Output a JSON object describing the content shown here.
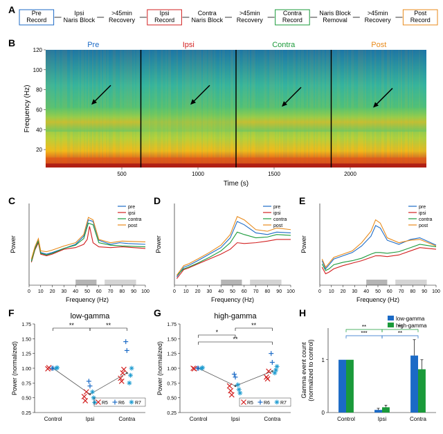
{
  "panelA": {
    "label": "A",
    "boxes": [
      {
        "text": "Pre\nRecord",
        "border": "#1b6ac6"
      },
      {
        "text": "Ipsi\nNaris Block"
      },
      {
        "text": ">45min\nRecovery"
      },
      {
        "text": "Ipsi\nRecord",
        "border": "#d21f1f"
      },
      {
        "text": "Contra\nNaris Block"
      },
      {
        "text": ">45min\nRecovery"
      },
      {
        "text": "Contra\nRecord",
        "border": "#1a9a3a"
      },
      {
        "text": "Naris Block\nRemoval"
      },
      {
        "text": ">45min\nRecovery"
      },
      {
        "text": "Post\nRecord",
        "border": "#e88a1a"
      }
    ],
    "font_size": 9
  },
  "panelB": {
    "label": "B",
    "title_labels": [
      {
        "text": "Pre",
        "color": "#1b6ac6"
      },
      {
        "text": "Ipsi",
        "color": "#d21f1f"
      },
      {
        "text": "Contra",
        "color": "#1a9a3a"
      },
      {
        "text": "Post",
        "color": "#e88a1a"
      }
    ],
    "ylabel": "Frequency (Hz)",
    "ylabel_fontsize": 10,
    "xlabel": "Time (s)",
    "xlabel_fontsize": 10,
    "ylim": [
      2,
      120
    ],
    "yticks": [
      20,
      40,
      60,
      80,
      100,
      120
    ],
    "xlim": [
      0,
      2500
    ],
    "xticks": [
      500,
      1000,
      1500,
      2000
    ],
    "segment_boundaries": [
      625,
      1250,
      1875
    ],
    "arrow_positions_x": [
      300,
      950,
      1550,
      2150
    ],
    "arrow_positions_y": [
      65,
      65,
      63,
      62
    ],
    "colormap": {
      "low": "#1a6fa8",
      "mid_low": "#34b3a0",
      "mid": "#5bc46b",
      "mid_high": "#b8d13a",
      "high": "#f3b81a",
      "peak": "#e05a1a",
      "max": "#a81414"
    },
    "band_y": 50
  },
  "panelC": {
    "label": "C"
  },
  "panelD": {
    "label": "D"
  },
  "panelE": {
    "label": "E"
  },
  "psd_common": {
    "xlabel": "Frequency (Hz)",
    "ylabel": "Power",
    "xlim": [
      0,
      100
    ],
    "xticks": [
      0,
      10,
      20,
      30,
      40,
      50,
      60,
      70,
      80,
      90,
      100
    ],
    "label_fontsize": 9,
    "tick_fontsize": 7,
    "legend": [
      {
        "label": "pre",
        "color": "#1b6ac6"
      },
      {
        "label": "ipsi",
        "color": "#d21f1f"
      },
      {
        "label": "contra",
        "color": "#1a9a3a"
      },
      {
        "label": "post",
        "color": "#e88a1a"
      }
    ],
    "grayband1": [
      40,
      58
    ],
    "grayband2": [
      65,
      92
    ],
    "line_width": 1.1
  },
  "psdC_data": {
    "ylim": [
      0,
      1
    ],
    "pre": [
      [
        2,
        0.3
      ],
      [
        5,
        0.45
      ],
      [
        8,
        0.55
      ],
      [
        10,
        0.4
      ],
      [
        15,
        0.38
      ],
      [
        20,
        0.4
      ],
      [
        30,
        0.45
      ],
      [
        40,
        0.5
      ],
      [
        47,
        0.6
      ],
      [
        51,
        0.8
      ],
      [
        55,
        0.78
      ],
      [
        60,
        0.55
      ],
      [
        70,
        0.5
      ],
      [
        78,
        0.52
      ],
      [
        85,
        0.51
      ],
      [
        100,
        0.5
      ]
    ],
    "ipsi": [
      [
        2,
        0.28
      ],
      [
        5,
        0.43
      ],
      [
        8,
        0.52
      ],
      [
        10,
        0.38
      ],
      [
        15,
        0.36
      ],
      [
        20,
        0.38
      ],
      [
        30,
        0.44
      ],
      [
        40,
        0.46
      ],
      [
        47,
        0.5
      ],
      [
        50,
        0.56
      ],
      [
        52,
        0.72
      ],
      [
        55,
        0.52
      ],
      [
        60,
        0.47
      ],
      [
        70,
        0.46
      ],
      [
        80,
        0.47
      ],
      [
        100,
        0.45
      ]
    ],
    "contra": [
      [
        2,
        0.29
      ],
      [
        5,
        0.44
      ],
      [
        8,
        0.54
      ],
      [
        10,
        0.39
      ],
      [
        15,
        0.37
      ],
      [
        20,
        0.39
      ],
      [
        30,
        0.45
      ],
      [
        40,
        0.49
      ],
      [
        47,
        0.57
      ],
      [
        51,
        0.76
      ],
      [
        55,
        0.74
      ],
      [
        60,
        0.52
      ],
      [
        70,
        0.49
      ],
      [
        80,
        0.48
      ],
      [
        100,
        0.47
      ]
    ],
    "post": [
      [
        2,
        0.32
      ],
      [
        5,
        0.47
      ],
      [
        8,
        0.57
      ],
      [
        10,
        0.42
      ],
      [
        15,
        0.41
      ],
      [
        20,
        0.43
      ],
      [
        30,
        0.48
      ],
      [
        40,
        0.52
      ],
      [
        47,
        0.62
      ],
      [
        51,
        0.83
      ],
      [
        55,
        0.8
      ],
      [
        60,
        0.56
      ],
      [
        70,
        0.52
      ],
      [
        80,
        0.54
      ],
      [
        100,
        0.53
      ]
    ]
  },
  "psdD_data": {
    "ylim": [
      0,
      1
    ],
    "pre": [
      [
        2,
        0.1
      ],
      [
        8,
        0.22
      ],
      [
        12,
        0.24
      ],
      [
        20,
        0.3
      ],
      [
        30,
        0.38
      ],
      [
        40,
        0.46
      ],
      [
        48,
        0.58
      ],
      [
        54,
        0.78
      ],
      [
        60,
        0.74
      ],
      [
        70,
        0.64
      ],
      [
        80,
        0.62
      ],
      [
        88,
        0.65
      ],
      [
        100,
        0.64
      ]
    ],
    "ipsi": [
      [
        2,
        0.08
      ],
      [
        8,
        0.19
      ],
      [
        12,
        0.21
      ],
      [
        20,
        0.26
      ],
      [
        30,
        0.32
      ],
      [
        40,
        0.38
      ],
      [
        48,
        0.44
      ],
      [
        54,
        0.52
      ],
      [
        60,
        0.51
      ],
      [
        70,
        0.52
      ],
      [
        80,
        0.54
      ],
      [
        88,
        0.56
      ],
      [
        100,
        0.56
      ]
    ],
    "contra": [
      [
        2,
        0.12
      ],
      [
        8,
        0.2
      ],
      [
        12,
        0.22
      ],
      [
        20,
        0.27
      ],
      [
        30,
        0.34
      ],
      [
        40,
        0.42
      ],
      [
        48,
        0.52
      ],
      [
        54,
        0.65
      ],
      [
        60,
        0.62
      ],
      [
        70,
        0.58
      ],
      [
        80,
        0.59
      ],
      [
        88,
        0.62
      ],
      [
        100,
        0.61
      ]
    ],
    "post": [
      [
        2,
        0.12
      ],
      [
        8,
        0.24
      ],
      [
        12,
        0.26
      ],
      [
        20,
        0.32
      ],
      [
        30,
        0.4
      ],
      [
        40,
        0.49
      ],
      [
        48,
        0.62
      ],
      [
        54,
        0.84
      ],
      [
        60,
        0.8
      ],
      [
        70,
        0.68
      ],
      [
        80,
        0.66
      ],
      [
        88,
        0.7
      ],
      [
        100,
        0.68
      ]
    ]
  },
  "psdE_data": {
    "ylim": [
      0,
      1
    ],
    "pre": [
      [
        2,
        0.3
      ],
      [
        5,
        0.2
      ],
      [
        8,
        0.25
      ],
      [
        12,
        0.32
      ],
      [
        20,
        0.36
      ],
      [
        28,
        0.4
      ],
      [
        36,
        0.48
      ],
      [
        44,
        0.6
      ],
      [
        48,
        0.73
      ],
      [
        52,
        0.7
      ],
      [
        58,
        0.55
      ],
      [
        68,
        0.5
      ],
      [
        78,
        0.56
      ],
      [
        86,
        0.58
      ],
      [
        100,
        0.49
      ]
    ],
    "ipsi": [
      [
        2,
        0.22
      ],
      [
        5,
        0.14
      ],
      [
        8,
        0.16
      ],
      [
        12,
        0.2
      ],
      [
        20,
        0.24
      ],
      [
        28,
        0.27
      ],
      [
        36,
        0.3
      ],
      [
        44,
        0.34
      ],
      [
        48,
        0.36
      ],
      [
        52,
        0.36
      ],
      [
        58,
        0.35
      ],
      [
        68,
        0.37
      ],
      [
        78,
        0.42
      ],
      [
        86,
        0.46
      ],
      [
        100,
        0.44
      ]
    ],
    "contra": [
      [
        2,
        0.26
      ],
      [
        5,
        0.18
      ],
      [
        8,
        0.2
      ],
      [
        12,
        0.25
      ],
      [
        20,
        0.28
      ],
      [
        28,
        0.3
      ],
      [
        36,
        0.33
      ],
      [
        44,
        0.38
      ],
      [
        48,
        0.4
      ],
      [
        52,
        0.4
      ],
      [
        58,
        0.39
      ],
      [
        68,
        0.41
      ],
      [
        78,
        0.46
      ],
      [
        86,
        0.5
      ],
      [
        100,
        0.47
      ]
    ],
    "post": [
      [
        2,
        0.32
      ],
      [
        5,
        0.22
      ],
      [
        8,
        0.27
      ],
      [
        12,
        0.34
      ],
      [
        20,
        0.38
      ],
      [
        28,
        0.42
      ],
      [
        36,
        0.52
      ],
      [
        44,
        0.66
      ],
      [
        48,
        0.8
      ],
      [
        52,
        0.76
      ],
      [
        58,
        0.58
      ],
      [
        68,
        0.52
      ],
      [
        78,
        0.55
      ],
      [
        86,
        0.56
      ],
      [
        100,
        0.48
      ]
    ]
  },
  "panelF": {
    "label": "F",
    "title": "low-gamma",
    "ylabel": "Power (normalized)",
    "ylim": [
      0.25,
      1.75
    ],
    "yticks": [
      0.25,
      0.5,
      0.75,
      1.0,
      1.25,
      1.5,
      1.75
    ],
    "categories": [
      "Control",
      "Ipsi",
      "Contra"
    ],
    "markers": [
      {
        "name": "R5",
        "color": "#d21f1f",
        "shape": "x"
      },
      {
        "name": "R6",
        "color": "#1b6ac6",
        "shape": "plus"
      },
      {
        "name": "R7",
        "color": "#1c9bd0",
        "shape": "star"
      }
    ],
    "points": {
      "Control": {
        "R5": [
          0.99,
          1.01
        ],
        "R6": [
          1.0,
          1.0
        ],
        "R7": [
          1.0,
          1.01
        ]
      },
      "Ipsi": {
        "R5": [
          0.52,
          0.45,
          0.6
        ],
        "R6": [
          0.78,
          0.7
        ],
        "R7": [
          0.6,
          0.5,
          0.42
        ]
      },
      "Contra": {
        "R5": [
          0.83,
          0.78,
          0.92,
          0.98
        ],
        "R6": [
          1.45,
          1.3
        ],
        "R7": [
          0.75,
          0.88,
          1.0
        ]
      }
    },
    "medians": [
      1.0,
      0.56,
      0.92
    ],
    "sig": [
      {
        "from": "Control",
        "to": "Ipsi",
        "label": "**",
        "level": 1
      },
      {
        "from": "Ipsi",
        "to": "Contra",
        "label": "**",
        "level": 1
      }
    ],
    "title_fontsize": 11,
    "label_fontsize": 9
  },
  "panelG": {
    "label": "G",
    "title": "high-gamma",
    "ylabel": "Power (normalized)",
    "ylim": [
      0.25,
      1.75
    ],
    "yticks": [
      0.25,
      0.5,
      0.75,
      1.0,
      1.25,
      1.5,
      1.75
    ],
    "categories": [
      "Control",
      "Ipsi",
      "Contra"
    ],
    "markers": [
      {
        "name": "R5",
        "color": "#d21f1f",
        "shape": "x"
      },
      {
        "name": "R6",
        "color": "#1b6ac6",
        "shape": "plus"
      },
      {
        "name": "R7",
        "color": "#1c9bd0",
        "shape": "star"
      }
    ],
    "points": {
      "Control": {
        "R5": [
          1.0,
          0.99
        ],
        "R6": [
          1.0,
          1.0
        ],
        "R7": [
          1.0,
          1.01
        ]
      },
      "Ipsi": {
        "R5": [
          0.7,
          0.62,
          0.55
        ],
        "R6": [
          0.9,
          0.85
        ],
        "R7": [
          0.72,
          0.64,
          0.58
        ]
      },
      "Contra": {
        "R5": [
          0.85,
          0.82,
          0.95
        ],
        "R6": [
          1.25,
          1.1
        ],
        "R7": [
          0.92,
          0.97,
          1.03
        ]
      }
    },
    "medians": [
      1.0,
      0.7,
      0.95
    ],
    "sig": [
      {
        "from": "Control",
        "to": "Ipsi",
        "label": "*",
        "level": 2
      },
      {
        "from": "Ipsi",
        "to": "Contra",
        "label": "**",
        "level": 1
      },
      {
        "from": "Control",
        "to": "Contra",
        "label": "**",
        "level": 3
      }
    ],
    "title_fontsize": 11,
    "label_fontsize": 9
  },
  "panelH": {
    "label": "H",
    "ylabel": "Gamma event count\n(normalized to control)",
    "ylim": [
      0,
      1.6
    ],
    "yticks": [
      0,
      1
    ],
    "categories": [
      "Control",
      "Ipsi",
      "Contra"
    ],
    "bars": {
      "low-gamma": {
        "color": "#1b6ac6",
        "values": [
          1.0,
          0.05,
          1.08
        ],
        "err": [
          0,
          0.03,
          0.3
        ]
      },
      "high-gamma": {
        "color": "#1a9a3a",
        "values": [
          1.0,
          0.1,
          0.82
        ],
        "err": [
          0,
          0.04,
          0.18
        ]
      }
    },
    "legend": [
      {
        "label": "low-gamma",
        "color": "#1b6ac6"
      },
      {
        "label": "high-gamma",
        "color": "#1a9a3a"
      }
    ],
    "sig": [
      {
        "from": "Control",
        "to": "Ipsi",
        "label": "**",
        "level": 1,
        "color": "#1a9a3a"
      },
      {
        "from": "Control",
        "to": "Ipsi",
        "label": "***",
        "level": 2,
        "color": "#1b6ac6"
      },
      {
        "from": "Ipsi",
        "to": "Contra",
        "label": "**",
        "level": 1,
        "color": "#1a9a3a"
      },
      {
        "from": "Ipsi",
        "to": "Contra",
        "label": "**",
        "level": 2,
        "color": "#1b6ac6"
      }
    ],
    "bar_width": 0.35,
    "label_fontsize": 9
  }
}
